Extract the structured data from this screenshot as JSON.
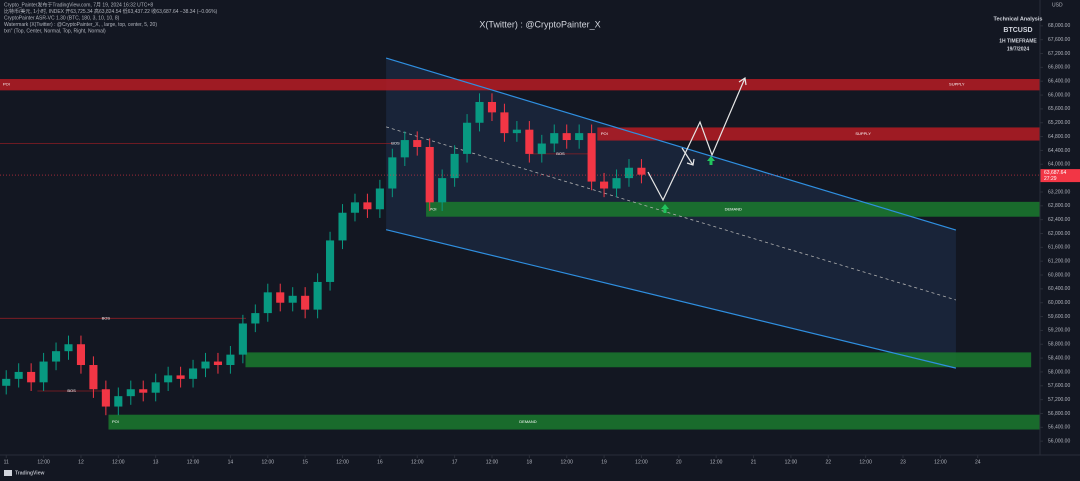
{
  "chart_data": {
    "type": "candlestick",
    "title": "X(Twitter) : @CryptoPainter_X",
    "header_lines": [
      "Crypto_Painter发布于TradingView.com, 7月 19, 2024 16:32 UTC+8",
      "比特币/美元, 1小时, INDEX  开63,725.34 高63,824.54 低63,437.22 收63,687.64 −38.34 (−0.06%)",
      "CryptoPainter ASR-VC 1.30 (BTC, 180, 3, 10, 10, 8)",
      "Watermark (X(Twitter) : @CryptoPainter_X, , large, top, center, 5, 20)",
      "txn\" (Top, Center, Normal, Top, Right, Normal)"
    ],
    "info_box": [
      "Technical Analysis",
      "BTCUSD",
      "1H TIMEFRAME",
      "19/7/2024"
    ],
    "y_unit": "USD",
    "footer": "TradingView",
    "up_color": "#089981",
    "down_color": "#f23645",
    "x": [
      0,
      4,
      8,
      12,
      16,
      20,
      24,
      28,
      32,
      36,
      40,
      44,
      48,
      52,
      56,
      60,
      64,
      68,
      72,
      76,
      80,
      84,
      88,
      92,
      96,
      100,
      104,
      108,
      112,
      116,
      120,
      124,
      128,
      132,
      136,
      140,
      144,
      148,
      152,
      156,
      160,
      164,
      168,
      172,
      176,
      180,
      184,
      188,
      192,
      196,
      200,
      204
    ],
    "open": [
      57600,
      57800,
      58000,
      57700,
      58300,
      58600,
      58800,
      58200,
      57500,
      57000,
      57300,
      57500,
      57400,
      57700,
      57900,
      57800,
      58100,
      58300,
      58200,
      58500,
      59400,
      59700,
      60300,
      60000,
      60200,
      59800,
      60600,
      61800,
      62600,
      62900,
      62700,
      63300,
      64200,
      64700,
      64500,
      62900,
      63600,
      64300,
      65200,
      65800,
      65500,
      64900,
      65000,
      64300,
      64600,
      64900,
      64700,
      64900,
      63500,
      63300,
      63600,
      63900
    ],
    "high": [
      58050,
      58250,
      58250,
      58550,
      58850,
      59050,
      59050,
      58450,
      57750,
      57550,
      57750,
      57750,
      57950,
      58150,
      58150,
      58350,
      58550,
      58550,
      58750,
      59650,
      59950,
      60550,
      60550,
      60450,
      60450,
      60850,
      62050,
      62850,
      63150,
      63150,
      63550,
      64450,
      64950,
      64950,
      64750,
      63850,
      64550,
      65450,
      66050,
      66050,
      65750,
      65250,
      65250,
      64850,
      65150,
      65150,
      65150,
      65150,
      63750,
      63850,
      64150,
      64150
    ],
    "low": [
      57350,
      57550,
      57450,
      57450,
      58050,
      58350,
      57950,
      57250,
      56750,
      56750,
      57050,
      57150,
      57150,
      57450,
      57550,
      57550,
      57850,
      57950,
      57950,
      58250,
      59150,
      59450,
      59750,
      59750,
      59550,
      59550,
      60350,
      61550,
      62350,
      62450,
      62450,
      63050,
      63950,
      64250,
      62650,
      62650,
      63350,
      64050,
      64950,
      65250,
      64650,
      64650,
      64050,
      64050,
      64350,
      64450,
      64450,
      63250,
      63050,
      63050,
      63350,
      63450
    ],
    "close": [
      57800,
      58000,
      57700,
      58300,
      58600,
      58800,
      58200,
      57500,
      57000,
      57300,
      57500,
      57400,
      57700,
      57900,
      57800,
      58100,
      58300,
      58200,
      58500,
      59400,
      59700,
      60300,
      60000,
      60200,
      59800,
      60600,
      61800,
      62600,
      62900,
      62700,
      63300,
      64200,
      64700,
      64500,
      62900,
      63600,
      64300,
      65200,
      65800,
      65500,
      64900,
      65000,
      64300,
      64600,
      64900,
      64700,
      64900,
      63500,
      63300,
      63600,
      63900,
      63700
    ],
    "xlim": [
      -2,
      332
    ],
    "xticks": [
      {
        "value": 0,
        "label": "11"
      },
      {
        "value": 12,
        "label": "12:00"
      },
      {
        "value": 24,
        "label": "12"
      },
      {
        "value": 36,
        "label": "12:00"
      },
      {
        "value": 48,
        "label": "13"
      },
      {
        "value": 60,
        "label": "12:00"
      },
      {
        "value": 72,
        "label": "14"
      },
      {
        "value": 84,
        "label": "12:00"
      },
      {
        "value": 96,
        "label": "15"
      },
      {
        "value": 108,
        "label": "12:00"
      },
      {
        "value": 120,
        "label": "16"
      },
      {
        "value": 132,
        "label": "12:00"
      },
      {
        "value": 144,
        "label": "17"
      },
      {
        "value": 156,
        "label": "12:00"
      },
      {
        "value": 168,
        "label": "18"
      },
      {
        "value": 180,
        "label": "12:00"
      },
      {
        "value": 192,
        "label": "19"
      },
      {
        "value": 204,
        "label": "12:00"
      },
      {
        "value": 216,
        "label": "20"
      },
      {
        "value": 228,
        "label": "12:00"
      },
      {
        "value": 240,
        "label": "21"
      },
      {
        "value": 252,
        "label": "12:00"
      },
      {
        "value": 264,
        "label": "22"
      },
      {
        "value": 276,
        "label": "12:00"
      },
      {
        "value": 288,
        "label": "23"
      },
      {
        "value": 300,
        "label": "12:00"
      },
      {
        "value": 312,
        "label": "24"
      }
    ],
    "ylim": [
      55600,
      68400
    ],
    "yticks": [
      {
        "value": 56000,
        "label": "56,000.00"
      },
      {
        "value": 56400,
        "label": "56,400.00"
      },
      {
        "value": 56800,
        "label": "56,800.00"
      },
      {
        "value": 57200,
        "label": "57,200.00"
      },
      {
        "value": 57600,
        "label": "57,600.00"
      },
      {
        "value": 58000,
        "label": "58,000.00"
      },
      {
        "value": 58400,
        "label": "58,400.00"
      },
      {
        "value": 58800,
        "label": "58,800.00"
      },
      {
        "value": 59200,
        "label": "59,200.00"
      },
      {
        "value": 59600,
        "label": "59,600.00"
      },
      {
        "value": 60000,
        "label": "60,000.00"
      },
      {
        "value": 60400,
        "label": "60,400.00"
      },
      {
        "value": 60800,
        "label": "60,800.00"
      },
      {
        "value": 61200,
        "label": "61,200.00"
      },
      {
        "value": 61600,
        "label": "61,600.00"
      },
      {
        "value": 62000,
        "label": "62,000.00"
      },
      {
        "value": 62400,
        "label": "62,400.00"
      },
      {
        "value": 62800,
        "label": "62,800.00"
      },
      {
        "value": 63200,
        "label": "63,200.00"
      },
      {
        "value": 64000,
        "label": "64,000.00"
      },
      {
        "value": 64400,
        "label": "64,400.00"
      },
      {
        "value": 64800,
        "label": "64,800.00"
      },
      {
        "value": 65200,
        "label": "65,200.00"
      },
      {
        "value": 65600,
        "label": "65,600.00"
      },
      {
        "value": 66000,
        "label": "66,000.00"
      },
      {
        "value": 66400,
        "label": "66,400.00"
      },
      {
        "value": 66800,
        "label": "66,800.00"
      },
      {
        "value": 67200,
        "label": "67,200.00"
      },
      {
        "value": 67600,
        "label": "67,600.00"
      },
      {
        "value": 68000,
        "label": "68,000.00"
      }
    ],
    "last_price": {
      "value": 63687.64,
      "label": "63,687.64"
    },
    "countdown": "27:29",
    "zones": [
      {
        "tag": "POI",
        "label": "SUPPLY",
        "from": -2,
        "to": 332,
        "high": 66450,
        "low": 66150,
        "color": "#b71c24"
      },
      {
        "tag": "POI",
        "label": "SUPPLY",
        "from": 190,
        "to": 332,
        "high": 65050,
        "low": 64700,
        "color": "#b71c24"
      },
      {
        "tag": "POI",
        "label": "DEMAND",
        "from": 135,
        "to": 332,
        "high": 62900,
        "low": 62500,
        "color": "#1b7a2e"
      },
      {
        "from": 77,
        "to": 329,
        "high": 58550,
        "low": 58150,
        "color": "#1b7a2e"
      },
      {
        "tag": "POI",
        "label": "DEMAND",
        "from": 33,
        "to": 332,
        "high": 56750,
        "low": 56350,
        "color": "#1b7a2e"
      }
    ],
    "bos": [
      {
        "label": "BOS",
        "at": 32,
        "price": 59550,
        "from": -2,
        "to": 77
      },
      {
        "label": "BOS",
        "at": 21,
        "price": 57450,
        "from": 10,
        "to": 33
      },
      {
        "label": "BOS",
        "at": 125,
        "price": 64600,
        "from": -2,
        "to": 124
      },
      {
        "label": "BOS",
        "at": 178,
        "price": 64300,
        "from": 168,
        "to": 188
      }
    ],
    "channel": {
      "upper": {
        "from": 122,
        "to": 305,
        "start": 67070,
        "end": 62100
      },
      "middle": {
        "from": 122,
        "to": 305,
        "start": 65080,
        "end": 60080
      },
      "lower": {
        "from": 122,
        "to": 305,
        "start": 62110,
        "end": 58110
      },
      "color": "#2f8fe0"
    }
  }
}
